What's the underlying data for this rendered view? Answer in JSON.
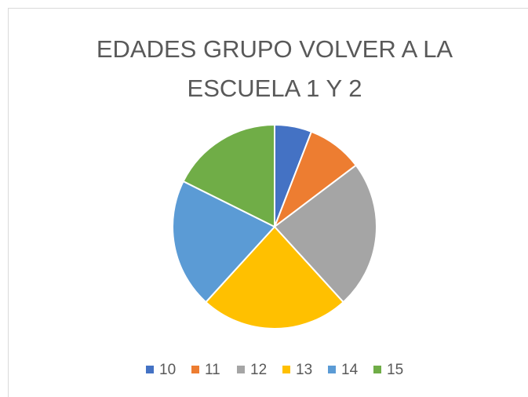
{
  "chart_data": {
    "type": "pie",
    "title": "EDADES GRUPO VOLVER A LA ESCUELA 1 Y 2",
    "categories": [
      "10",
      "11",
      "12",
      "13",
      "14",
      "15"
    ],
    "values": [
      2,
      3,
      8,
      8,
      7,
      6
    ],
    "colors": [
      "#4472c4",
      "#ed7d31",
      "#a5a5a5",
      "#ffc000",
      "#5b9bd5",
      "#70ad47"
    ],
    "legend": "bottom"
  }
}
